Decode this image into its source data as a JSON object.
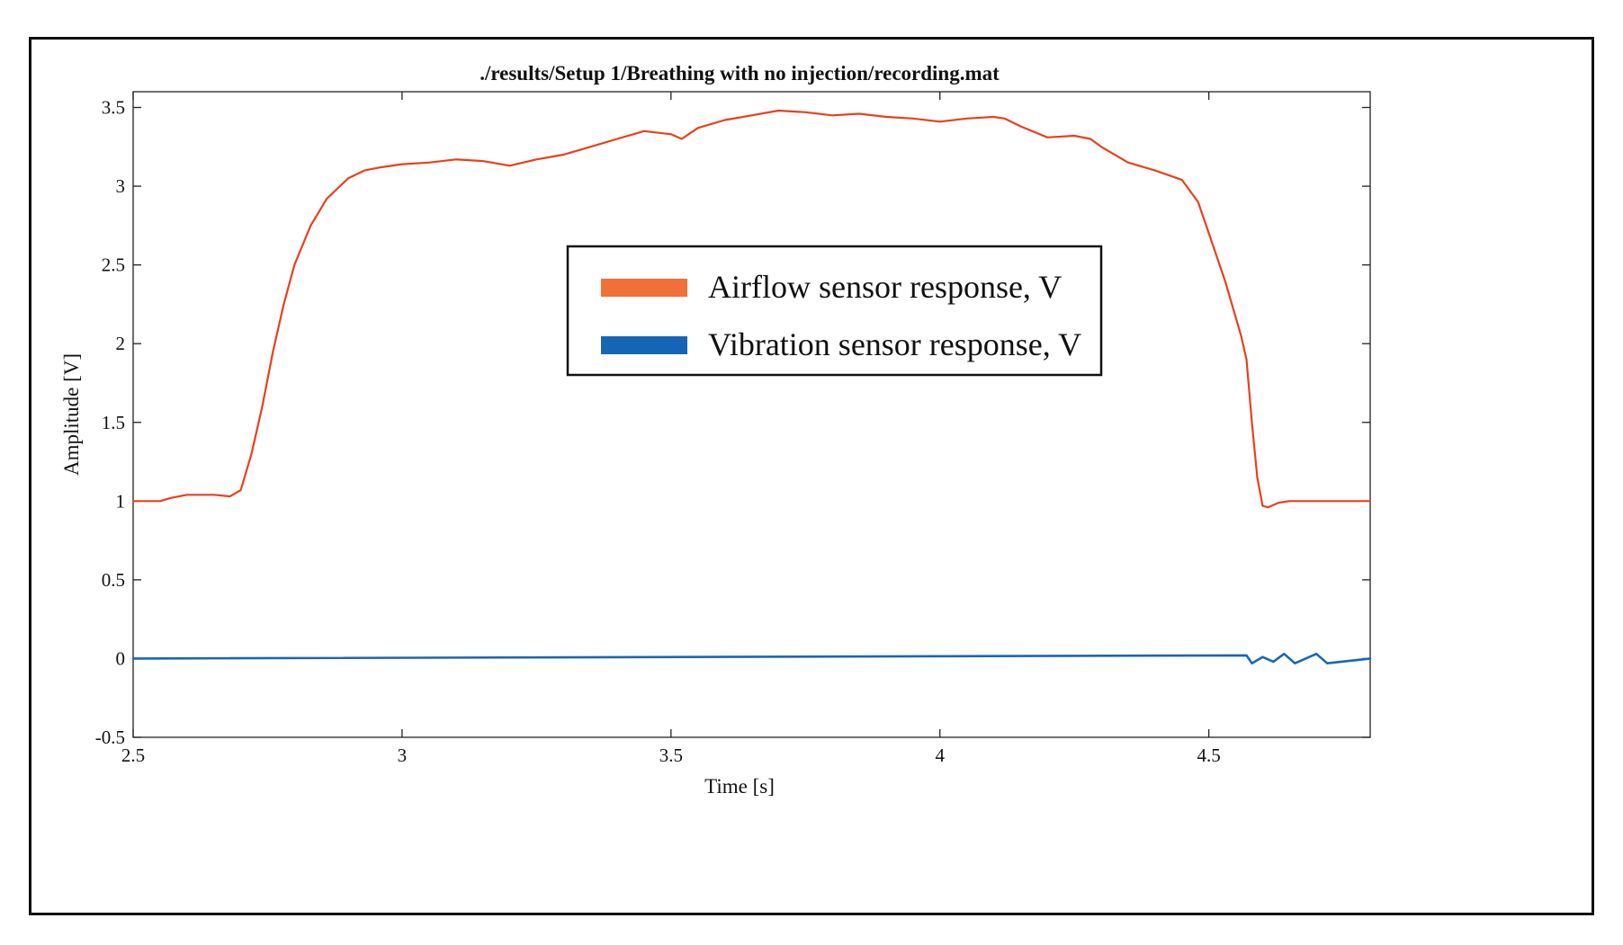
{
  "chart_data": {
    "type": "line",
    "title": "./results/Setup 1/Breathing with no injection/recording.mat",
    "xlabel": "Time [s]",
    "ylabel": "Amplitude [V]",
    "xlim": [
      2.5,
      4.8
    ],
    "ylim": [
      -0.5,
      3.6
    ],
    "x_ticks": [
      "2.5",
      "3",
      "3.5",
      "4",
      "4.5"
    ],
    "x_tick_values": [
      2.5,
      3,
      3.5,
      4,
      4.5
    ],
    "y_ticks": [
      "-0.5",
      "0",
      "0.5",
      "1",
      "1.5",
      "2",
      "2.5",
      "3",
      "3.5"
    ],
    "y_tick_values": [
      -0.5,
      0,
      0.5,
      1,
      1.5,
      2,
      2.5,
      3,
      3.5
    ],
    "grid": false,
    "legend_position": "center",
    "series": [
      {
        "name": "Airflow sensor response, V",
        "color": "#e8401c",
        "legend_color": "#f07038",
        "x": [
          2.5,
          2.55,
          2.57,
          2.6,
          2.65,
          2.68,
          2.7,
          2.72,
          2.74,
          2.76,
          2.78,
          2.8,
          2.83,
          2.86,
          2.9,
          2.93,
          2.96,
          3.0,
          3.05,
          3.1,
          3.15,
          3.2,
          3.25,
          3.3,
          3.35,
          3.4,
          3.45,
          3.5,
          3.52,
          3.55,
          3.6,
          3.65,
          3.7,
          3.75,
          3.8,
          3.85,
          3.9,
          3.95,
          4.0,
          4.05,
          4.1,
          4.12,
          4.15,
          4.2,
          4.25,
          4.28,
          4.3,
          4.35,
          4.4,
          4.45,
          4.48,
          4.5,
          4.53,
          4.56,
          4.57,
          4.58,
          4.59,
          4.6,
          4.61,
          4.63,
          4.65,
          4.7,
          4.75,
          4.8
        ],
        "y": [
          1.0,
          1.0,
          1.02,
          1.04,
          1.04,
          1.03,
          1.07,
          1.3,
          1.6,
          1.95,
          2.25,
          2.5,
          2.75,
          2.92,
          3.05,
          3.1,
          3.12,
          3.14,
          3.15,
          3.17,
          3.16,
          3.13,
          3.17,
          3.2,
          3.25,
          3.3,
          3.35,
          3.33,
          3.3,
          3.37,
          3.42,
          3.45,
          3.48,
          3.47,
          3.45,
          3.46,
          3.44,
          3.43,
          3.41,
          3.43,
          3.44,
          3.43,
          3.38,
          3.31,
          3.32,
          3.3,
          3.25,
          3.15,
          3.1,
          3.04,
          2.9,
          2.7,
          2.4,
          2.05,
          1.9,
          1.5,
          1.15,
          0.97,
          0.96,
          0.99,
          1.0,
          1.0,
          1.0,
          1.0
        ]
      },
      {
        "name": "Vibration sensor response, V",
        "color": "#1a67b0",
        "legend_color": "#1466b4",
        "x": [
          2.5,
          4.57,
          4.58,
          4.6,
          4.62,
          4.64,
          4.66,
          4.68,
          4.7,
          4.72,
          4.8
        ],
        "y": [
          0.0,
          0.02,
          -0.03,
          0.01,
          -0.02,
          0.03,
          -0.03,
          0.0,
          0.03,
          -0.03,
          0.0
        ]
      }
    ]
  }
}
